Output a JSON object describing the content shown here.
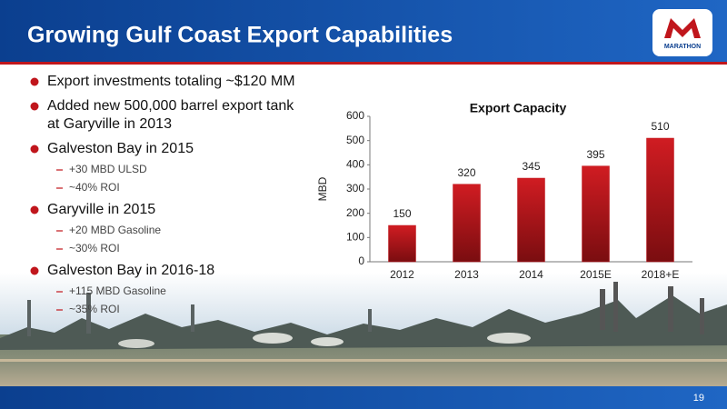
{
  "slide": {
    "title": "Growing Gulf Coast Export Capabilities",
    "logo_text": "MARATHON",
    "page_number": "19",
    "bullets": [
      {
        "lines": [
          "Export investments totaling ~$120 MM"
        ],
        "subs": []
      },
      {
        "lines": [
          "Added new 500,000 barrel export tank",
          "at Garyville in 2013"
        ],
        "subs": []
      },
      {
        "lines": [
          "Galveston Bay in 2015"
        ],
        "subs": [
          "+30 MBD ULSD",
          "~40% ROI"
        ]
      },
      {
        "lines": [
          "Garyville in 2015"
        ],
        "subs": [
          "+20 MBD Gasoline",
          "~30% ROI"
        ]
      },
      {
        "lines": [
          "Galveston Bay in 2016-18"
        ],
        "subs": [
          "+115 MBD Gasoline",
          "~35% ROI"
        ]
      }
    ]
  },
  "chart_data": {
    "type": "bar",
    "title": "Export Capacity",
    "y_label": "MBD",
    "categories": [
      "2012",
      "2013",
      "2014",
      "2015E",
      "2018+E"
    ],
    "values": [
      150,
      320,
      345,
      395,
      510
    ],
    "color": "#c0161c",
    "ylim": [
      0,
      600
    ],
    "yticks": [
      0,
      100,
      200,
      300,
      400,
      500,
      600
    ],
    "grid": false
  }
}
